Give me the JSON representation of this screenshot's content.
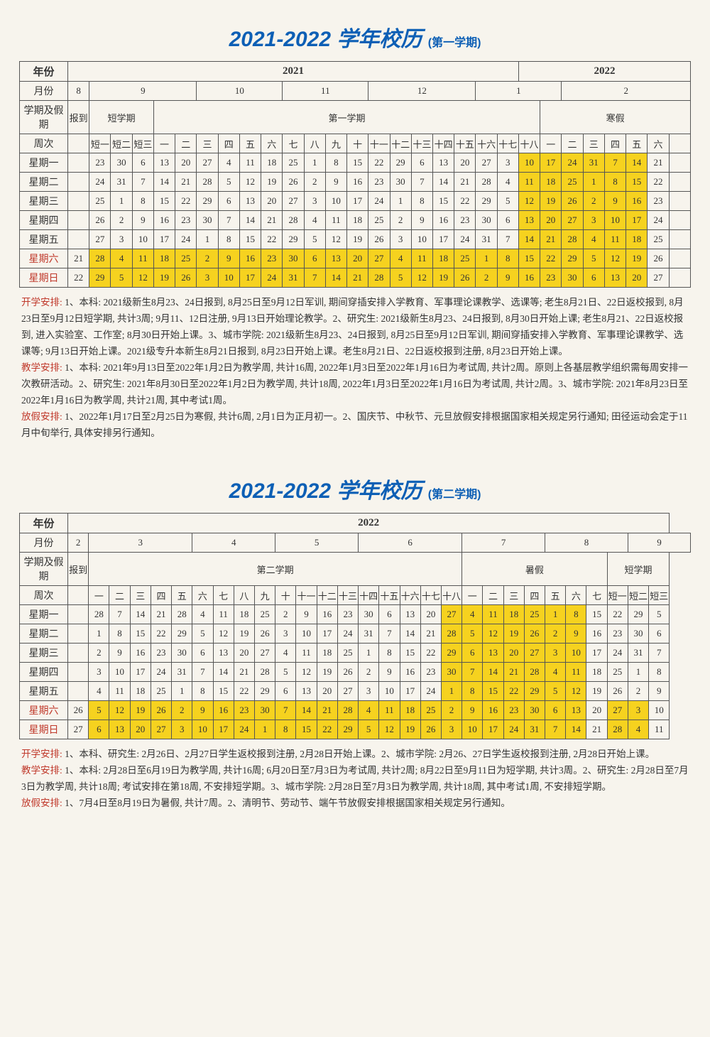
{
  "s1": {
    "title": "2021-2022 学年校历",
    "sub": "(第一学期)",
    "years": [
      "年份",
      "2021",
      "2022"
    ],
    "months": [
      "月份",
      "8",
      "9",
      "10",
      "11",
      "12",
      "1",
      "2"
    ],
    "periods": [
      "学期及假期",
      "报到",
      "短学期",
      "第一学期",
      "寒假"
    ],
    "weeknames": [
      "周次",
      "",
      "短一",
      "短二",
      "短三",
      "一",
      "二",
      "三",
      "四",
      "五",
      "六",
      "七",
      "八",
      "九",
      "十",
      "十一",
      "十二",
      "十三",
      "十四",
      "十五",
      "十六",
      "十七",
      "十八",
      "一",
      "二",
      "三",
      "四",
      "五",
      "六",
      ""
    ],
    "days": [
      {
        "l": "星期一",
        "v": [
          "",
          "23",
          "30",
          "6",
          "13",
          "20",
          "27",
          "4",
          "11",
          "18",
          "25",
          "1",
          "8",
          "15",
          "22",
          "29",
          "6",
          "13",
          "20",
          "27",
          "3",
          "10",
          "17",
          "24",
          "31",
          "7",
          "14",
          "21",
          ""
        ]
      },
      {
        "l": "星期二",
        "v": [
          "",
          "24",
          "31",
          "7",
          "14",
          "21",
          "28",
          "5",
          "12",
          "19",
          "26",
          "2",
          "9",
          "16",
          "23",
          "30",
          "7",
          "14",
          "21",
          "28",
          "4",
          "11",
          "18",
          "25",
          "1",
          "8",
          "15",
          "22",
          ""
        ]
      },
      {
        "l": "星期三",
        "v": [
          "",
          "25",
          "1",
          "8",
          "15",
          "22",
          "29",
          "6",
          "13",
          "20",
          "27",
          "3",
          "10",
          "17",
          "24",
          "1",
          "8",
          "15",
          "22",
          "29",
          "5",
          "12",
          "19",
          "26",
          "2",
          "9",
          "16",
          "23",
          ""
        ]
      },
      {
        "l": "星期四",
        "v": [
          "",
          "26",
          "2",
          "9",
          "16",
          "23",
          "30",
          "7",
          "14",
          "21",
          "28",
          "4",
          "11",
          "18",
          "25",
          "2",
          "9",
          "16",
          "23",
          "30",
          "6",
          "13",
          "20",
          "27",
          "3",
          "10",
          "17",
          "24",
          ""
        ]
      },
      {
        "l": "星期五",
        "v": [
          "",
          "27",
          "3",
          "10",
          "17",
          "24",
          "1",
          "8",
          "15",
          "22",
          "29",
          "5",
          "12",
          "19",
          "26",
          "3",
          "10",
          "17",
          "24",
          "31",
          "7",
          "14",
          "21",
          "28",
          "4",
          "11",
          "18",
          "25",
          ""
        ]
      },
      {
        "l": "星期六",
        "w": 1,
        "v": [
          "21",
          "28",
          "4",
          "11",
          "18",
          "25",
          "2",
          "9",
          "16",
          "23",
          "30",
          "6",
          "13",
          "20",
          "27",
          "4",
          "11",
          "18",
          "25",
          "1",
          "8",
          "15",
          "22",
          "29",
          "5",
          "12",
          "19",
          "26",
          ""
        ]
      },
      {
        "l": "星期日",
        "w": 1,
        "v": [
          "22",
          "29",
          "5",
          "12",
          "19",
          "26",
          "3",
          "10",
          "17",
          "24",
          "31",
          "7",
          "14",
          "21",
          "28",
          "5",
          "12",
          "19",
          "26",
          "2",
          "9",
          "16",
          "23",
          "30",
          "6",
          "13",
          "20",
          "27",
          ""
        ]
      }
    ],
    "hlcols": [
      22,
      23,
      24,
      25,
      26,
      27
    ],
    "notes": [
      {
        "h": "开学安排:",
        "t": " 1、本科: 2021级新生8月23、24日报到, 8月25日至9月12日军训, 期间穿插安排入学教育、军事理论课教学、选课等; 老生8月21日、22日返校报到, 8月23日至9月12日短学期, 共计3周; 9月11、12日注册, 9月13日开始理论教学。2、研究生: 2021级新生8月23、24日报到, 8月30日开始上课; 老生8月21、22日返校报到, 进入实验室、工作室; 8月30日开始上课。3、城市学院: 2021级新生8月23、24日报到, 8月25日至9月12日军训, 期间穿插安排入学教育、军事理论课教学、选课等; 9月13日开始上课。2021级专升本新生8月21日报到, 8月23日开始上课。老生8月21日、22日返校报到注册, 8月23日开始上课。"
      },
      {
        "h": "教学安排:",
        "t": " 1、本科: 2021年9月13日至2022年1月2日为教学周, 共计16周, 2022年1月3日至2022年1月16日为考试周, 共计2周。原则上各基层教学组织需每周安排一次教研活动。2、研究生: 2021年8月30日至2022年1月2日为教学周, 共计18周, 2022年1月3日至2022年1月16日为考试周, 共计2周。3、城市学院: 2021年8月23日至2022年1月16日为教学周, 共计21周, 其中考试1周。"
      },
      {
        "h": "放假安排:",
        "t": " 1、2022年1月17日至2月25日为寒假, 共计6周, 2月1日为正月初一。2、国庆节、中秋节、元旦放假安排根据国家相关规定另行通知; 田径运动会定于11月中旬举行, 具体安排另行通知。"
      }
    ]
  },
  "s2": {
    "title": "2021-2022 学年校历",
    "sub": "(第二学期)",
    "years": [
      "年份",
      "2022"
    ],
    "months": [
      "月份",
      "2",
      "3",
      "4",
      "5",
      "6",
      "7",
      "8",
      "9"
    ],
    "periods": [
      "学期及假期",
      "报到",
      "第二学期",
      "暑假",
      "短学期"
    ],
    "weeknames": [
      "周次",
      "",
      "一",
      "二",
      "三",
      "四",
      "五",
      "六",
      "七",
      "八",
      "九",
      "十",
      "十一",
      "十二",
      "十三",
      "十四",
      "十五",
      "十六",
      "十七",
      "十八",
      "一",
      "二",
      "三",
      "四",
      "五",
      "六",
      "七",
      "短一",
      "短二",
      "短三"
    ],
    "days": [
      {
        "l": "星期一",
        "v": [
          "",
          "28",
          "7",
          "14",
          "21",
          "28",
          "4",
          "11",
          "18",
          "25",
          "2",
          "9",
          "16",
          "23",
          "30",
          "6",
          "13",
          "20",
          "27",
          "4",
          "11",
          "18",
          "25",
          "1",
          "8",
          "15",
          "22",
          "29",
          "5"
        ]
      },
      {
        "l": "星期二",
        "v": [
          "",
          "1",
          "8",
          "15",
          "22",
          "29",
          "5",
          "12",
          "19",
          "26",
          "3",
          "10",
          "17",
          "24",
          "31",
          "7",
          "14",
          "21",
          "28",
          "5",
          "12",
          "19",
          "26",
          "2",
          "9",
          "16",
          "23",
          "30",
          "6"
        ]
      },
      {
        "l": "星期三",
        "v": [
          "",
          "2",
          "9",
          "16",
          "23",
          "30",
          "6",
          "13",
          "20",
          "27",
          "4",
          "11",
          "18",
          "25",
          "1",
          "8",
          "15",
          "22",
          "29",
          "6",
          "13",
          "20",
          "27",
          "3",
          "10",
          "17",
          "24",
          "31",
          "7"
        ]
      },
      {
        "l": "星期四",
        "v": [
          "",
          "3",
          "10",
          "17",
          "24",
          "31",
          "7",
          "14",
          "21",
          "28",
          "5",
          "12",
          "19",
          "26",
          "2",
          "9",
          "16",
          "23",
          "30",
          "7",
          "14",
          "21",
          "28",
          "4",
          "11",
          "18",
          "25",
          "1",
          "8"
        ]
      },
      {
        "l": "星期五",
        "v": [
          "",
          "4",
          "11",
          "18",
          "25",
          "1",
          "8",
          "15",
          "22",
          "29",
          "6",
          "13",
          "20",
          "27",
          "3",
          "10",
          "17",
          "24",
          "1",
          "8",
          "15",
          "22",
          "29",
          "5",
          "12",
          "19",
          "26",
          "2",
          "9"
        ]
      },
      {
        "l": "星期六",
        "w": 1,
        "v": [
          "26",
          "5",
          "12",
          "19",
          "26",
          "2",
          "9",
          "16",
          "23",
          "30",
          "7",
          "14",
          "21",
          "28",
          "4",
          "11",
          "18",
          "25",
          "2",
          "9",
          "16",
          "23",
          "30",
          "6",
          "13",
          "20",
          "27",
          "3",
          "10"
        ]
      },
      {
        "l": "星期日",
        "w": 1,
        "v": [
          "27",
          "6",
          "13",
          "20",
          "27",
          "3",
          "10",
          "17",
          "24",
          "1",
          "8",
          "15",
          "22",
          "29",
          "5",
          "12",
          "19",
          "26",
          "3",
          "10",
          "17",
          "24",
          "31",
          "7",
          "14",
          "21",
          "28",
          "4",
          "11"
        ]
      }
    ],
    "hlcols": [
      19,
      20,
      21,
      22,
      23,
      24,
      25
    ],
    "s2extra": [
      26,
      27,
      28
    ],
    "notes": [
      {
        "h": "开学安排:",
        "t": " 1、本科、研究生: 2月26日、2月27日学生返校报到注册, 2月28日开始上课。2、城市学院: 2月26、27日学生返校报到注册, 2月28日开始上课。"
      },
      {
        "h": "教学安排:",
        "t": " 1、本科: 2月28日至6月19日为教学周, 共计16周; 6月20日至7月3日为考试周, 共计2周; 8月22日至9月11日为短学期, 共计3周。2、研究生: 2月28日至7月3日为教学周, 共计18周; 考试安排在第18周, 不安排短学期。3、城市学院: 2月28日至7月3日为教学周, 共计18周, 其中考试1周, 不安排短学期。"
      },
      {
        "h": "放假安排:",
        "t": " 1、7月4日至8月19日为暑假, 共计7周。2、清明节、劳动节、端午节放假安排根据国家相关规定另行通知。"
      }
    ]
  }
}
